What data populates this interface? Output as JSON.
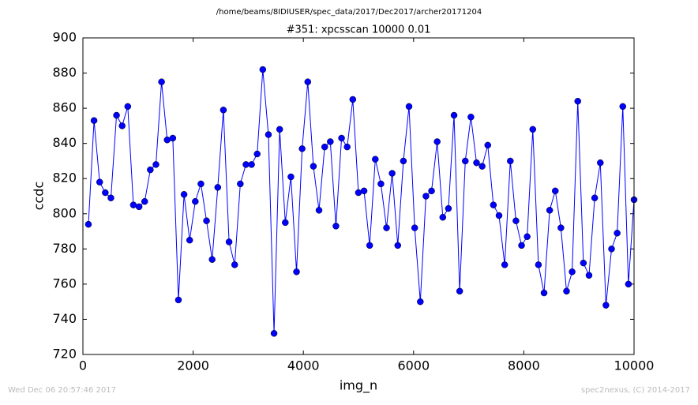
{
  "chart_data": {
    "type": "line",
    "suptitle": "/home/beams/8IDIUSER/spec_data/2017/Dec2017/archer20171204",
    "title": "#351: xpcsscan 10000 0.01",
    "xlabel": "img_n",
    "ylabel": "ccdc",
    "footer_left": "Wed Dec 06 20:57:46 2017",
    "footer_right": "spec2nexus, (C) 2014-2017",
    "x": [
      100,
      202,
      304,
      406,
      508,
      610,
      712,
      814,
      916,
      1019,
      1121,
      1223,
      1325,
      1427,
      1529,
      1631,
      1733,
      1835,
      1937,
      2039,
      2141,
      2243,
      2345,
      2447,
      2549,
      2652,
      2754,
      2856,
      2958,
      3060,
      3162,
      3264,
      3366,
      3468,
      3570,
      3672,
      3774,
      3876,
      3978,
      4080,
      4182,
      4284,
      4387,
      4489,
      4591,
      4693,
      4795,
      4897,
      4999,
      5101,
      5203,
      5305,
      5407,
      5509,
      5611,
      5713,
      5815,
      5917,
      6020,
      6122,
      6224,
      6326,
      6428,
      6530,
      6632,
      6734,
      6836,
      6938,
      7040,
      7142,
      7244,
      7346,
      7448,
      7550,
      7653,
      7755,
      7857,
      7959,
      8061,
      8163,
      8265,
      8367,
      8469,
      8571,
      8673,
      8775,
      8877,
      8979,
      9081,
      9183,
      9286,
      9388,
      9490,
      9592,
      9694,
      9796,
      9898,
      10000
    ],
    "series": [
      {
        "color": "#0000ff",
        "values": [
          794,
          853,
          818,
          812,
          809,
          856,
          850,
          861,
          805,
          804,
          807,
          825,
          828,
          875,
          842,
          843,
          751,
          811,
          785,
          807,
          817,
          796,
          774,
          815,
          859,
          784,
          771,
          817,
          828,
          828,
          834,
          882,
          845,
          732,
          848,
          795,
          821,
          767,
          837,
          875,
          827,
          802,
          838,
          841,
          793,
          843,
          838,
          865,
          812,
          813,
          782,
          831,
          817,
          792,
          823,
          782,
          830,
          861,
          792,
          750,
          810,
          813,
          841,
          798,
          803,
          856,
          756,
          830,
          855,
          829,
          827,
          839,
          805,
          799,
          771,
          830,
          796,
          782,
          787,
          848,
          771,
          755,
          802,
          813,
          792,
          756,
          767,
          864,
          772,
          765,
          809,
          829,
          748,
          780,
          789,
          861,
          760,
          808
        ]
      }
    ],
    "xlim": [
      0,
      10000
    ],
    "xticks": [
      0,
      2000,
      4000,
      6000,
      8000,
      10000
    ],
    "ylim": [
      720,
      900
    ],
    "yticks": [
      720,
      740,
      760,
      780,
      800,
      820,
      840,
      860,
      880,
      900
    ]
  }
}
